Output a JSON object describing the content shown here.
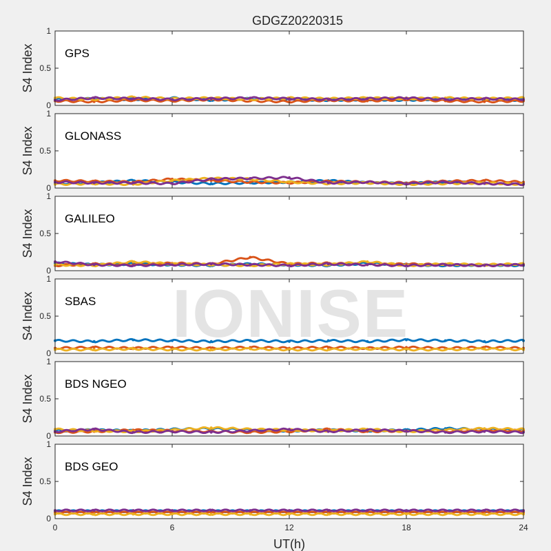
{
  "figure_title": "GDGZ20220315",
  "watermark": "IONISE",
  "colors": [
    "#0072BD",
    "#D95319",
    "#EDB120",
    "#7E2F8E",
    "#77AC30",
    "#4DBEEE",
    "#A2142F"
  ],
  "chart_data": {
    "type": "scatter",
    "title": "GDGZ20220315",
    "xlabel": "UT(h)",
    "xlim": [
      0,
      24
    ],
    "xticks": [
      0,
      6,
      12,
      18,
      24
    ],
    "panels": [
      {
        "label": "GPS",
        "ylabel": "S4 Index",
        "ylim": [
          0,
          1
        ],
        "yticks": [
          "0",
          "0.5",
          "1"
        ],
        "series": [
          {
            "x": [
              0,
              2,
              4,
              6,
              8,
              10,
              12,
              14,
              16,
              18,
              20,
              22,
              24
            ],
            "y": [
              0.08,
              0.09,
              0.08,
              0.1,
              0.07,
              0.09,
              0.08,
              0.07,
              0.08,
              0.07,
              0.09,
              0.08,
              0.07
            ]
          },
          {
            "x": [
              0,
              2,
              4,
              6,
              8,
              10,
              12,
              14,
              16,
              18,
              20,
              22,
              24
            ],
            "y": [
              0.06,
              0.05,
              0.07,
              0.06,
              0.08,
              0.06,
              0.05,
              0.07,
              0.06,
              0.08,
              0.06,
              0.05,
              0.06
            ]
          },
          {
            "x": [
              0,
              2,
              4,
              6,
              8,
              10,
              12,
              14,
              16,
              18,
              20,
              22,
              24
            ],
            "y": [
              0.1,
              0.08,
              0.11,
              0.09,
              0.1,
              0.08,
              0.1,
              0.09,
              0.1,
              0.09,
              0.1,
              0.09,
              0.1
            ]
          },
          {
            "x": [
              0,
              2,
              4,
              6,
              8,
              10,
              12,
              14,
              16,
              18,
              20,
              22,
              24
            ],
            "y": [
              0.07,
              0.1,
              0.09,
              0.08,
              0.09,
              0.1,
              0.09,
              0.08,
              0.09,
              0.1,
              0.08,
              0.09,
              0.08
            ]
          }
        ]
      },
      {
        "label": "GLONASS",
        "ylabel": "S4 Index",
        "ylim": [
          0,
          1
        ],
        "yticks": [
          "0",
          "0.5",
          "1"
        ],
        "series": [
          {
            "x": [
              0,
              2,
              4,
              6,
              8,
              10,
              12,
              14,
              16,
              18,
              20,
              22,
              24
            ],
            "y": [
              0.06,
              0.07,
              0.1,
              0.08,
              0.06,
              0.07,
              0.08,
              0.1,
              0.07,
              0.06,
              0.08,
              0.07,
              0.06
            ]
          },
          {
            "x": [
              0,
              2,
              4,
              6,
              8,
              10,
              12,
              14,
              16,
              18,
              20,
              22,
              24
            ],
            "y": [
              0.1,
              0.09,
              0.08,
              0.12,
              0.1,
              0.08,
              0.07,
              0.09,
              0.08,
              0.07,
              0.09,
              0.1,
              0.08
            ]
          },
          {
            "x": [
              0,
              2,
              4,
              6,
              8,
              10,
              12,
              14,
              16,
              18,
              20,
              22,
              24
            ],
            "y": [
              0.05,
              0.06,
              0.05,
              0.1,
              0.13,
              0.12,
              0.08,
              0.06,
              0.07,
              0.05,
              0.06,
              0.07,
              0.05
            ]
          },
          {
            "x": [
              0,
              2,
              4,
              6,
              8,
              10,
              12,
              14,
              16,
              18,
              20,
              22,
              24
            ],
            "y": [
              0.08,
              0.07,
              0.07,
              0.06,
              0.12,
              0.13,
              0.14,
              0.07,
              0.08,
              0.06,
              0.08,
              0.06,
              0.05
            ]
          }
        ]
      },
      {
        "label": "GALILEO",
        "ylabel": "S4 Index",
        "ylim": [
          0,
          1
        ],
        "yticks": [
          "0",
          "0.5",
          "1"
        ],
        "series": [
          {
            "x": [
              0,
              2,
              4,
              6,
              8,
              10,
              12,
              14,
              16,
              18,
              20,
              22,
              24
            ],
            "y": [
              0.1,
              0.08,
              0.09,
              0.08,
              0.07,
              0.09,
              0.08,
              0.07,
              0.1,
              0.08,
              0.07,
              0.08,
              0.07
            ]
          },
          {
            "x": [
              0,
              2,
              4,
              6,
              8,
              10,
              12,
              14,
              16,
              18,
              20,
              22,
              24
            ],
            "y": [
              0.07,
              0.09,
              0.08,
              0.1,
              0.09,
              0.18,
              0.09,
              0.1,
              0.08,
              0.09,
              0.08,
              0.07,
              0.08
            ]
          },
          {
            "x": [
              0,
              2,
              4,
              6,
              8,
              10,
              12,
              14,
              16,
              18,
              20,
              22,
              24
            ],
            "y": [
              0.08,
              0.07,
              0.12,
              0.09,
              0.08,
              0.07,
              0.09,
              0.08,
              0.12,
              0.07,
              0.09,
              0.08,
              0.09
            ]
          },
          {
            "x": [
              0,
              2,
              4,
              6,
              8,
              10,
              12,
              14,
              16,
              18,
              20,
              22,
              24
            ],
            "y": [
              0.12,
              0.08,
              0.07,
              0.08,
              0.09,
              0.08,
              0.07,
              0.09,
              0.08,
              0.07,
              0.08,
              0.07,
              0.08
            ]
          }
        ]
      },
      {
        "label": "SBAS",
        "ylabel": "S4 Index",
        "ylim": [
          0,
          1
        ],
        "yticks": [
          "0",
          "0.5",
          "1"
        ],
        "series": [
          {
            "x": [
              0,
              2,
              4,
              6,
              8,
              10,
              12,
              14,
              16,
              18,
              20,
              22,
              24
            ],
            "y": [
              0.17,
              0.16,
              0.18,
              0.17,
              0.16,
              0.17,
              0.16,
              0.17,
              0.16,
              0.18,
              0.17,
              0.16,
              0.17
            ]
          },
          {
            "x": [
              0,
              2,
              4,
              6,
              8,
              10,
              12,
              14,
              16,
              18,
              20,
              22,
              24
            ],
            "y": [
              0.07,
              0.08,
              0.07,
              0.08,
              0.07,
              0.08,
              0.07,
              0.08,
              0.07,
              0.08,
              0.07,
              0.08,
              0.07
            ]
          },
          {
            "x": [
              0,
              2,
              4,
              6,
              8,
              10,
              12,
              14,
              16,
              18,
              20,
              22,
              24
            ],
            "y": [
              0.05,
              0.05,
              0.06,
              0.05,
              0.05,
              0.06,
              0.05,
              0.05,
              0.06,
              0.05,
              0.05,
              0.06,
              0.05
            ]
          }
        ]
      },
      {
        "label": "BDS NGEO",
        "ylabel": "S4 Index",
        "ylim": [
          0,
          1
        ],
        "yticks": [
          "0",
          "0.5",
          "1"
        ],
        "series": [
          {
            "x": [
              0,
              2,
              4,
              6,
              8,
              10,
              12,
              14,
              16,
              18,
              20,
              22,
              24
            ],
            "y": [
              0.07,
              0.08,
              0.07,
              0.09,
              0.1,
              0.08,
              0.07,
              0.08,
              0.07,
              0.08,
              0.1,
              0.09,
              0.08
            ]
          },
          {
            "x": [
              0,
              2,
              4,
              6,
              8,
              10,
              12,
              14,
              16,
              18,
              20,
              22,
              24
            ],
            "y": [
              0.05,
              0.06,
              0.08,
              0.07,
              0.06,
              0.05,
              0.06,
              0.09,
              0.06,
              0.07,
              0.06,
              0.08,
              0.07
            ]
          },
          {
            "x": [
              0,
              2,
              4,
              6,
              8,
              10,
              12,
              14,
              16,
              18,
              20,
              22,
              24
            ],
            "y": [
              0.09,
              0.07,
              0.06,
              0.08,
              0.11,
              0.09,
              0.08,
              0.07,
              0.09,
              0.06,
              0.08,
              0.1,
              0.09
            ]
          },
          {
            "x": [
              0,
              2,
              4,
              6,
              8,
              10,
              12,
              14,
              16,
              18,
              20,
              22,
              24
            ],
            "y": [
              0.06,
              0.09,
              0.05,
              0.06,
              0.05,
              0.07,
              0.09,
              0.06,
              0.08,
              0.07,
              0.05,
              0.06,
              0.05
            ]
          }
        ]
      },
      {
        "label": "BDS GEO",
        "ylabel": "S4 Index",
        "ylim": [
          0,
          1
        ],
        "yticks": [
          "0",
          "0.5",
          "1"
        ],
        "series": [
          {
            "x": [
              0,
              2,
              4,
              6,
              8,
              10,
              12,
              14,
              16,
              18,
              20,
              22,
              24
            ],
            "y": [
              0.1,
              0.1,
              0.1,
              0.1,
              0.1,
              0.1,
              0.1,
              0.1,
              0.1,
              0.1,
              0.1,
              0.1,
              0.1
            ]
          },
          {
            "x": [
              0,
              2,
              4,
              6,
              8,
              10,
              12,
              14,
              16,
              18,
              20,
              22,
              24
            ],
            "y": [
              0.08,
              0.08,
              0.08,
              0.08,
              0.08,
              0.08,
              0.08,
              0.08,
              0.08,
              0.08,
              0.08,
              0.08,
              0.08
            ]
          },
          {
            "x": [
              0,
              2,
              4,
              6,
              8,
              10,
              12,
              14,
              16,
              18,
              20,
              22,
              24
            ],
            "y": [
              0.06,
              0.06,
              0.06,
              0.06,
              0.06,
              0.06,
              0.06,
              0.06,
              0.06,
              0.06,
              0.06,
              0.06,
              0.06
            ]
          },
          {
            "x": [
              0,
              2,
              4,
              6,
              8,
              10,
              12,
              14,
              16,
              18,
              20,
              22,
              24
            ],
            "y": [
              0.11,
              0.11,
              0.11,
              0.11,
              0.11,
              0.11,
              0.11,
              0.11,
              0.11,
              0.11,
              0.11,
              0.11,
              0.11
            ]
          }
        ]
      }
    ]
  }
}
